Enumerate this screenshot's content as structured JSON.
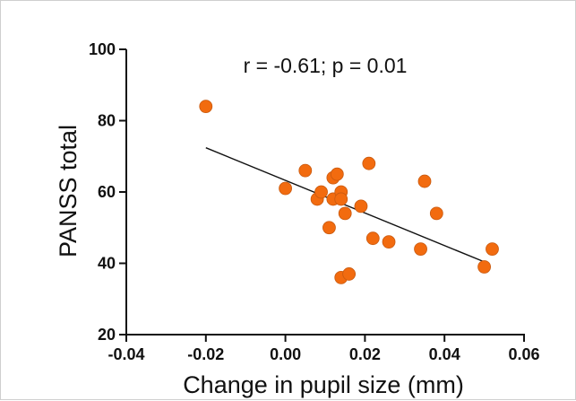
{
  "chart_data": {
    "type": "scatter",
    "title": "",
    "xlabel": "Change in pupil size (mm)",
    "ylabel": "PANSS total",
    "xlim": [
      -0.04,
      0.06
    ],
    "ylim": [
      20,
      100
    ],
    "xticks": [
      "-0.04",
      "-0.02",
      "0.00",
      "0.02",
      "0.04",
      "0.06"
    ],
    "yticks": [
      "20",
      "40",
      "60",
      "80",
      "100"
    ],
    "annotation": "r = -0.61; p = 0.01",
    "grid": false,
    "marker_color": "#f26b0f",
    "marker_edge_color": "#c85a10",
    "line_color": "#111111",
    "points": [
      {
        "x": -0.02,
        "y": 84
      },
      {
        "x": 0.0,
        "y": 61
      },
      {
        "x": 0.005,
        "y": 66
      },
      {
        "x": 0.008,
        "y": 58
      },
      {
        "x": 0.009,
        "y": 60
      },
      {
        "x": 0.011,
        "y": 50
      },
      {
        "x": 0.012,
        "y": 64
      },
      {
        "x": 0.012,
        "y": 58
      },
      {
        "x": 0.013,
        "y": 65
      },
      {
        "x": 0.014,
        "y": 60
      },
      {
        "x": 0.014,
        "y": 58
      },
      {
        "x": 0.014,
        "y": 36
      },
      {
        "x": 0.015,
        "y": 54
      },
      {
        "x": 0.016,
        "y": 37
      },
      {
        "x": 0.019,
        "y": 56
      },
      {
        "x": 0.021,
        "y": 68
      },
      {
        "x": 0.022,
        "y": 47
      },
      {
        "x": 0.026,
        "y": 46
      },
      {
        "x": 0.034,
        "y": 44
      },
      {
        "x": 0.035,
        "y": 63
      },
      {
        "x": 0.038,
        "y": 54
      },
      {
        "x": 0.05,
        "y": 39
      },
      {
        "x": 0.052,
        "y": 44
      }
    ],
    "trendline": {
      "x": [
        -0.02,
        0.05
      ],
      "y": [
        72.4,
        40.4
      ]
    }
  }
}
